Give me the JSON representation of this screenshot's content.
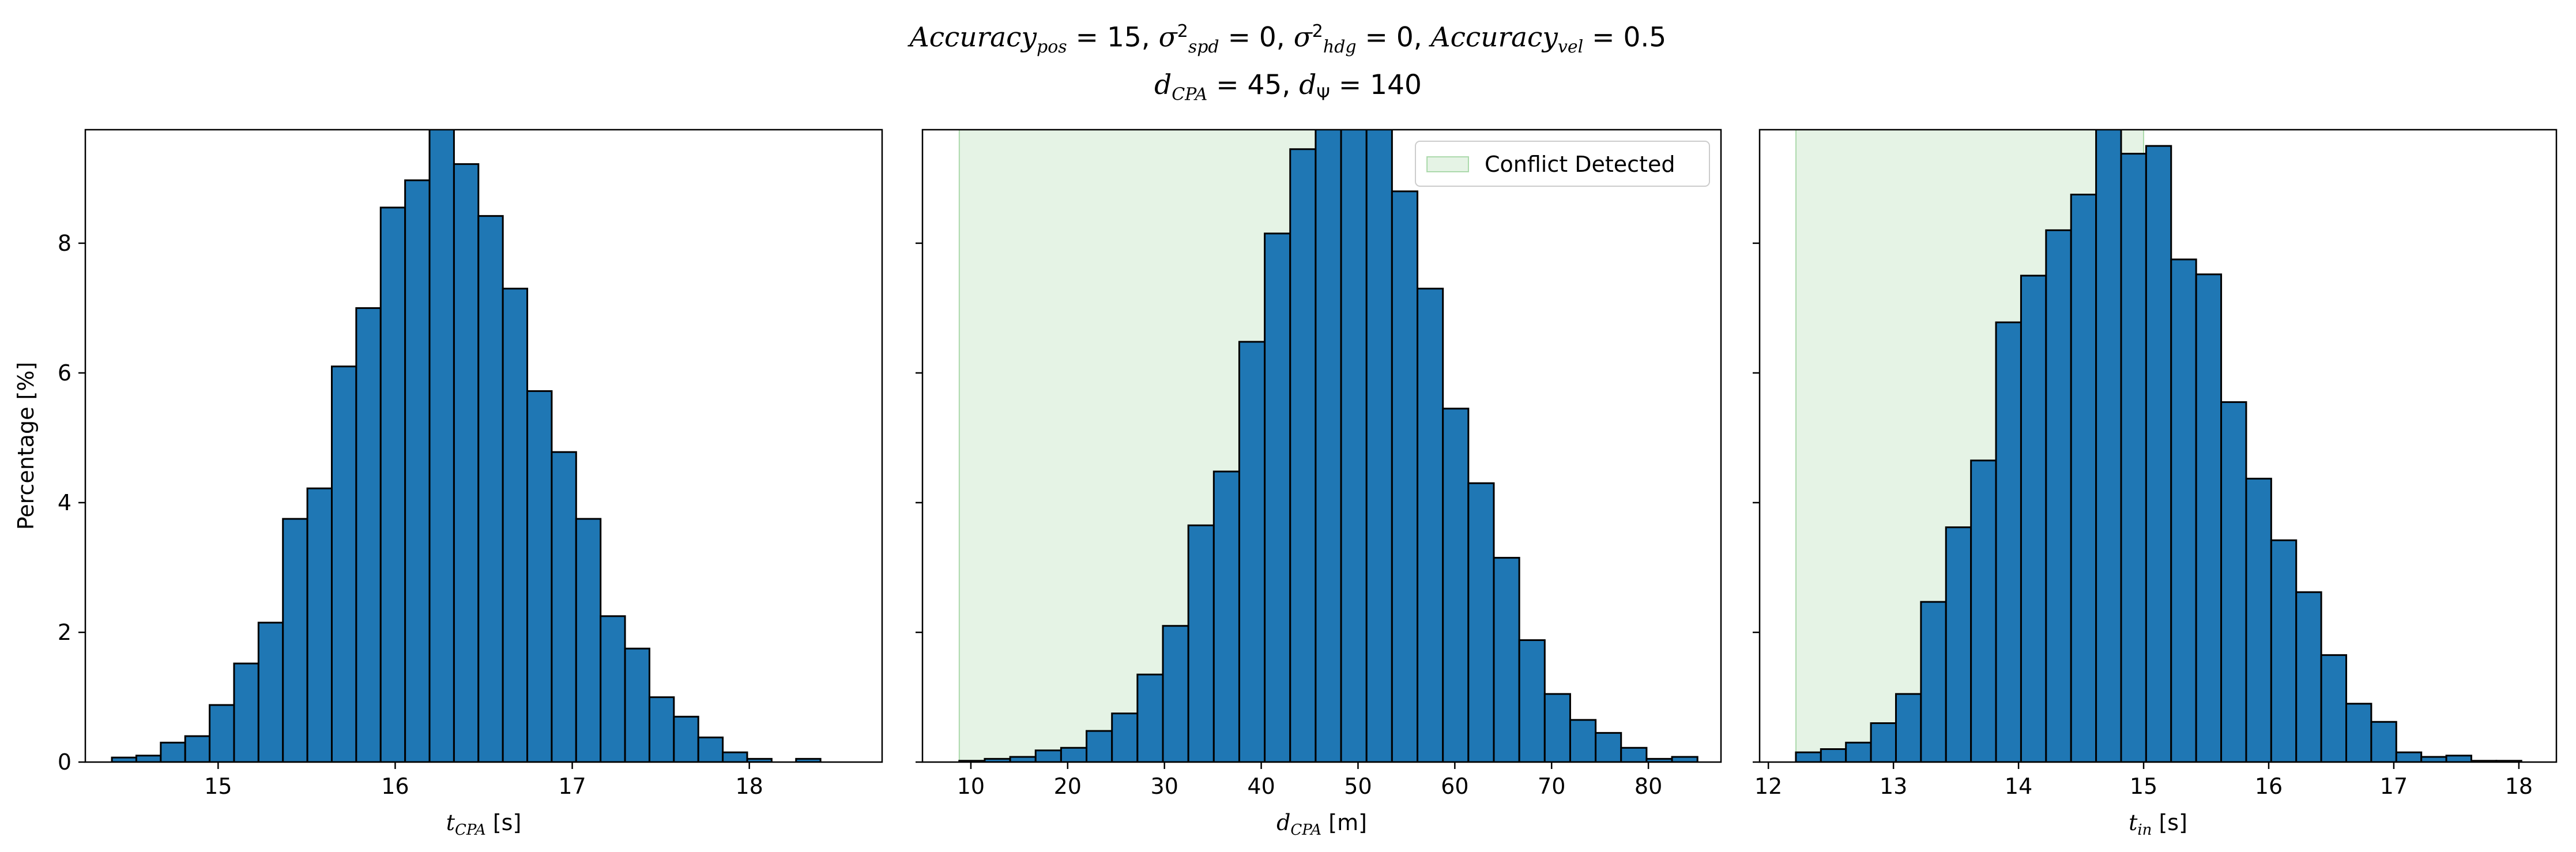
{
  "figure": {
    "title_line1": [
      {
        "t": "Accuracy",
        "i": true
      },
      {
        "t": "pos",
        "sub": true,
        "i": true
      },
      {
        "t": " = 15, "
      },
      {
        "t": "σ",
        "i": true
      },
      {
        "t": "2",
        "sup": true
      },
      {
        "t": "spd",
        "sub": true,
        "i": true
      },
      {
        "t": " = 0, "
      },
      {
        "t": "σ",
        "i": true
      },
      {
        "t": "2",
        "sup": true
      },
      {
        "t": "hdg",
        "sub": true,
        "i": true
      },
      {
        "t": " = 0, "
      },
      {
        "t": "Accuracy",
        "i": true
      },
      {
        "t": "vel",
        "sub": true,
        "i": true
      },
      {
        "t": " = 0.5"
      }
    ],
    "title_line2": [
      {
        "t": "d",
        "i": true
      },
      {
        "t": "CPA",
        "sub": true,
        "i": true
      },
      {
        "t": " = 45, "
      },
      {
        "t": "d",
        "i": true
      },
      {
        "t": "Ψ",
        "sub": true
      },
      {
        "t": " = 140"
      }
    ]
  },
  "chart_data": [
    {
      "type": "bar",
      "subtype": "histogram",
      "xlabel_parts": [
        {
          "t": "t",
          "i": true
        },
        {
          "t": "CPA",
          "sub": true,
          "i": true
        },
        {
          "t": " [s]"
        }
      ],
      "ylabel": "Percentage [%]",
      "xlim": [
        14.25,
        18.75
      ],
      "ylim": [
        0,
        9.75
      ],
      "xticks": [
        15,
        16,
        17,
        18
      ],
      "yticks": [
        0,
        2,
        4,
        6,
        8
      ],
      "show_ytick_labels": true,
      "bar_color": "#1f77b4",
      "edge_color": "#000000",
      "bin_start": 14.4,
      "bin_width": 0.138,
      "values": [
        0.07,
        0.1,
        0.3,
        0.4,
        0.88,
        1.52,
        2.15,
        3.75,
        4.22,
        6.1,
        7.0,
        8.55,
        8.97,
        9.85,
        9.22,
        8.42,
        7.3,
        5.72,
        4.78,
        3.75,
        2.25,
        1.75,
        1.0,
        0.7,
        0.38,
        0.15,
        0.05,
        0.0,
        0.05
      ]
    },
    {
      "type": "bar",
      "subtype": "histogram",
      "xlabel_parts": [
        {
          "t": "d",
          "i": true
        },
        {
          "t": "CPA",
          "sub": true,
          "i": true
        },
        {
          "t": " [m]"
        }
      ],
      "ylabel": "",
      "xlim": [
        5.0,
        87.5
      ],
      "ylim": [
        0,
        9.75
      ],
      "xticks": [
        10,
        20,
        30,
        40,
        50,
        60,
        70,
        80
      ],
      "yticks": [
        0,
        2,
        4,
        6,
        8
      ],
      "show_ytick_labels": false,
      "bar_color": "#1f77b4",
      "edge_color": "#000000",
      "bin_start": 8.8,
      "bin_width": 2.63,
      "values": [
        0.02,
        0.05,
        0.08,
        0.18,
        0.22,
        0.48,
        0.75,
        1.35,
        2.1,
        3.65,
        4.48,
        6.48,
        8.15,
        9.45,
        10.05,
        9.8,
        9.8,
        8.8,
        7.3,
        5.45,
        4.3,
        3.15,
        1.88,
        1.05,
        0.65,
        0.45,
        0.22,
        0.05,
        0.08,
        0.0,
        0.02
      ],
      "shaded_span": [
        8.8,
        50.0
      ],
      "shade_color": "#2ca02c",
      "shade_opacity": 0.12,
      "legend": {
        "label": "Conflict Detected",
        "loc": "upper right"
      }
    },
    {
      "type": "bar",
      "subtype": "histogram",
      "xlabel_parts": [
        {
          "t": "t",
          "i": true
        },
        {
          "t": "in",
          "sub": true,
          "i": true
        },
        {
          "t": " [s]"
        }
      ],
      "ylabel": "",
      "xlim": [
        11.93,
        18.3
      ],
      "ylim": [
        0,
        9.75
      ],
      "xticks": [
        12,
        13,
        14,
        15,
        16,
        17,
        18
      ],
      "yticks": [
        0,
        2,
        4,
        6,
        8
      ],
      "show_ytick_labels": false,
      "bar_color": "#1f77b4",
      "edge_color": "#000000",
      "bin_start": 12.22,
      "bin_width": 0.2,
      "values": [
        0.15,
        0.2,
        0.3,
        0.6,
        1.05,
        2.47,
        3.62,
        4.65,
        6.78,
        7.5,
        8.2,
        8.75,
        9.9,
        9.38,
        9.5,
        7.75,
        7.52,
        5.55,
        4.37,
        3.42,
        2.62,
        1.65,
        0.9,
        0.62,
        0.15,
        0.08,
        0.1,
        0.02,
        0.02
      ],
      "shaded_span": [
        12.22,
        15.0
      ],
      "shade_color": "#2ca02c",
      "shade_opacity": 0.12
    }
  ]
}
